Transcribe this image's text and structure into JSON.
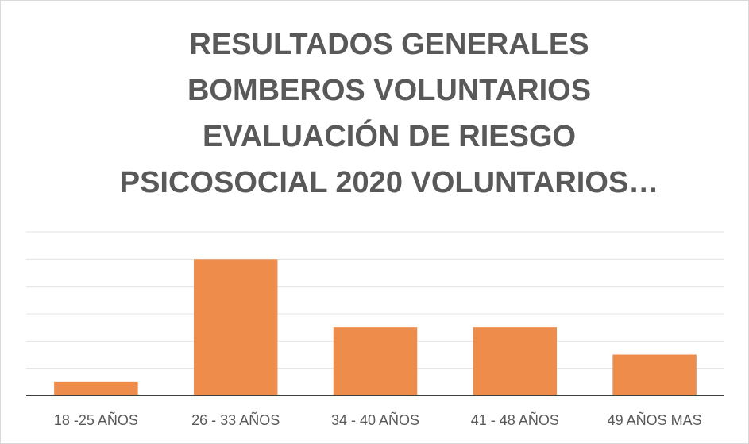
{
  "chart_data": {
    "type": "bar",
    "title": [
      "RESULTADOS GENERALES",
      "BOMBEROS VOLUNTARIOS",
      "EVALUACIÓN DE RIESGO",
      "PSICOSOCIAL 2020 VOLUNTARIOS…"
    ],
    "categories": [
      "18 -25 AÑOS",
      "26 - 33 AÑOS",
      "34 - 40 AÑOS",
      "41 - 48 AÑOS",
      "49 AÑOS MAS"
    ],
    "values": [
      0.5,
      5,
      2.5,
      2.5,
      1.5
    ],
    "color": "#ee8c4c",
    "ylim": [
      0,
      6
    ],
    "yticks": [
      0,
      1,
      2,
      3,
      4,
      5,
      6
    ],
    "grid": true
  }
}
